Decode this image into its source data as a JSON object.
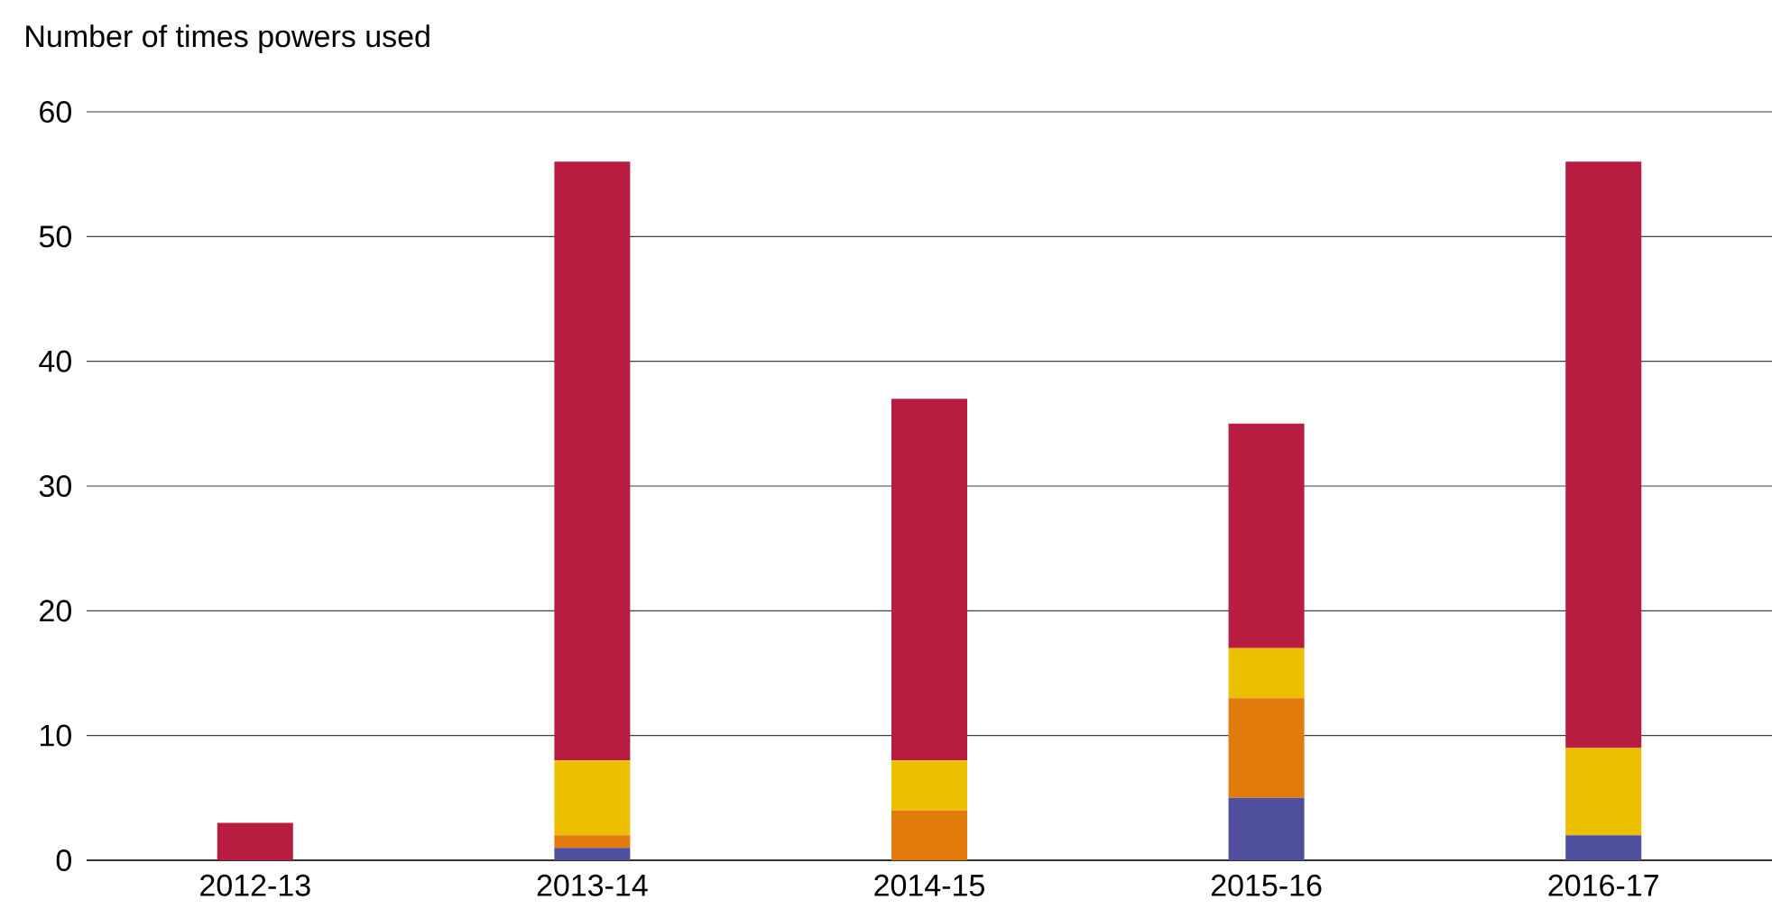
{
  "chart_data": {
    "type": "bar",
    "stacked": true,
    "ylabel": "Number of times powers used",
    "categories": [
      "2012-13",
      "2013-14",
      "2014-15",
      "2015-16",
      "2016-17"
    ],
    "series": [
      {
        "color": "#4f4f9e",
        "values": [
          0,
          1,
          0,
          5,
          2
        ]
      },
      {
        "color": "#e07b0c",
        "values": [
          0,
          1,
          4,
          8,
          0
        ]
      },
      {
        "color": "#ecbf00",
        "values": [
          0,
          6,
          4,
          4,
          7
        ]
      },
      {
        "color": "#b81c40",
        "values": [
          3,
          48,
          29,
          18,
          47
        ]
      }
    ],
    "ylim": [
      0,
      60
    ],
    "yticks": [
      0,
      10,
      20,
      30,
      40,
      50,
      60
    ],
    "grid": "y"
  }
}
